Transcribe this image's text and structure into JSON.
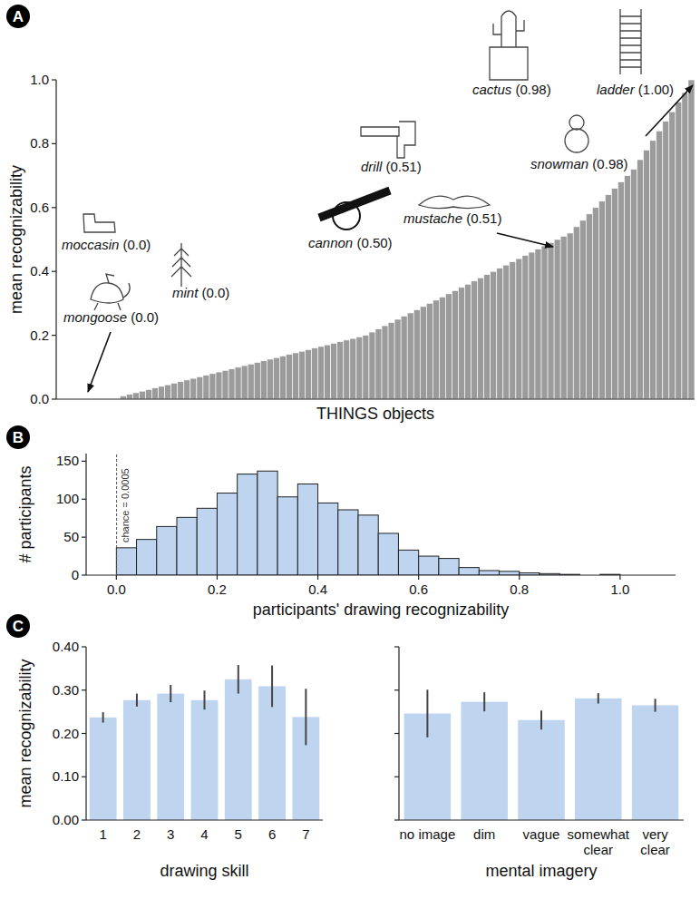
{
  "chart_data": [
    {
      "panel": "A",
      "type": "bar",
      "categories": [
        null,
        null,
        null,
        null,
        null,
        null,
        null,
        null,
        null,
        null,
        null,
        null,
        null,
        null,
        null,
        null,
        null,
        null,
        null,
        null,
        null,
        null,
        null,
        null,
        null,
        null,
        null,
        null,
        null,
        null,
        null,
        null,
        null,
        null,
        null,
        null,
        null,
        null,
        null,
        null,
        null,
        null,
        null,
        null,
        null,
        null,
        null,
        null,
        null,
        null,
        null,
        null,
        null,
        null,
        null,
        null,
        null,
        null,
        null,
        null,
        null,
        null,
        null,
        null,
        null,
        null,
        null,
        null,
        null,
        null,
        null,
        null,
        null,
        null,
        null,
        null,
        null,
        null,
        null,
        null,
        null,
        null,
        null,
        null,
        null,
        null,
        null,
        null,
        null,
        null,
        null,
        null,
        null,
        null,
        null,
        null,
        null,
        null,
        null,
        null
      ],
      "values": [
        0,
        0,
        0,
        0,
        0,
        0,
        0,
        0,
        0,
        0,
        0.01,
        0.015,
        0.02,
        0.025,
        0.03,
        0.035,
        0.04,
        0.045,
        0.05,
        0.055,
        0.06,
        0.065,
        0.07,
        0.075,
        0.08,
        0.085,
        0.09,
        0.095,
        0.1,
        0.105,
        0.11,
        0.115,
        0.12,
        0.125,
        0.13,
        0.135,
        0.14,
        0.145,
        0.15,
        0.155,
        0.16,
        0.165,
        0.17,
        0.175,
        0.18,
        0.185,
        0.19,
        0.195,
        0.2,
        0.21,
        0.22,
        0.23,
        0.24,
        0.25,
        0.26,
        0.27,
        0.28,
        0.29,
        0.3,
        0.31,
        0.32,
        0.33,
        0.34,
        0.35,
        0.36,
        0.37,
        0.38,
        0.39,
        0.4,
        0.41,
        0.42,
        0.43,
        0.44,
        0.45,
        0.46,
        0.47,
        0.48,
        0.49,
        0.5,
        0.51,
        0.52,
        0.54,
        0.56,
        0.58,
        0.6,
        0.62,
        0.64,
        0.66,
        0.68,
        0.7,
        0.72,
        0.75,
        0.78,
        0.81,
        0.84,
        0.87,
        0.9,
        0.93,
        0.96,
        1.0
      ],
      "color": "#9b9b9b",
      "ylim": [
        0,
        1
      ],
      "yticks": [
        {
          "value": 0,
          "label": "0.0"
        },
        {
          "value": 0.2,
          "label": "0.2"
        },
        {
          "value": 0.4,
          "label": "0.4"
        },
        {
          "value": 0.6,
          "label": "0.6"
        },
        {
          "value": 0.8,
          "label": "0.8"
        },
        {
          "value": 1,
          "label": "1.0"
        }
      ],
      "y_label": "mean recognizability",
      "x_label": "THINGS objects",
      "tick_labels": "y",
      "grid": false,
      "annotations": [
        {
          "text": "moccasin (0.0)"
        },
        {
          "text": "mint (0.0)"
        },
        {
          "text": "mongoose (0.0)"
        },
        {
          "text": "drill (0.51)"
        },
        {
          "text": "cannon (0.50)"
        },
        {
          "text": "mustache (0.51)"
        },
        {
          "text": "cactus (0.98)"
        },
        {
          "text": "ladder (1.00)"
        },
        {
          "text": "snowman (0.98)"
        }
      ]
    },
    {
      "panel": "B",
      "type": "histogram",
      "bins": [
        0,
        0.04,
        0.08,
        0.12,
        0.16,
        0.2,
        0.24,
        0.28,
        0.32,
        0.36,
        0.4,
        0.44,
        0.48,
        0.52,
        0.56,
        0.6,
        0.64,
        0.68,
        0.72,
        0.76,
        0.8,
        0.84,
        0.88,
        0.92,
        0.96,
        1
      ],
      "values": [
        36,
        47,
        64,
        76,
        88,
        108,
        133,
        137,
        103,
        120,
        95,
        86,
        79,
        55,
        33,
        25,
        22,
        10,
        6,
        5,
        3,
        2,
        1,
        0,
        1
      ],
      "color": "#bfd4ee",
      "xlim": [
        -0.06,
        1.11
      ],
      "xticks": [
        {
          "value": 0,
          "label": "0.0"
        },
        {
          "value": 0.2,
          "label": "0.2"
        },
        {
          "value": 0.4,
          "label": "0.4"
        },
        {
          "value": 0.6,
          "label": "0.6"
        },
        {
          "value": 0.8,
          "label": "0.8"
        },
        {
          "value": 1,
          "label": "1.0"
        }
      ],
      "ylim": [
        0,
        160
      ],
      "yticks": [
        0,
        50,
        100,
        150
      ],
      "x_label": "participants' drawing recognizability",
      "y_label": "# participants",
      "grid": false,
      "annotations": [
        {
          "x": 0.0005,
          "text": "chance = 0.0005"
        }
      ]
    },
    {
      "panel": "C",
      "type": "bar",
      "categories": [
        "1",
        "2",
        "3",
        "4",
        "5",
        "6",
        "7"
      ],
      "values": [
        0.237,
        0.277,
        0.292,
        0.277,
        0.325,
        0.309,
        0.238
      ],
      "errors": [
        0.012,
        0.015,
        0.02,
        0.022,
        0.033,
        0.048,
        0.065
      ],
      "color": "#bfd4ee",
      "ylim": [
        0,
        0.4
      ],
      "yticks": [
        {
          "value": 0,
          "label": "0.00"
        },
        {
          "value": 0.1,
          "label": "0.10"
        },
        {
          "value": 0.2,
          "label": "0.20"
        },
        {
          "value": 0.3,
          "label": "0.30"
        },
        {
          "value": 0.4,
          "label": "0.40"
        }
      ],
      "x_label": "drawing skill",
      "y_label": "mean recognizability",
      "grid": false
    },
    {
      "type": "bar",
      "categories": [
        "no image",
        "dim",
        "vague",
        "somewhat clear",
        "very clear"
      ],
      "values": [
        0.246,
        0.273,
        0.231,
        0.281,
        0.265
      ],
      "errors": [
        0.055,
        0.022,
        0.022,
        0.012,
        0.015
      ],
      "color": "#bfd4ee",
      "ylim": [
        0,
        0.4
      ],
      "yticks": [
        0,
        0.1,
        0.2,
        0.3,
        0.4
      ],
      "x_label": "mental imagery",
      "tick_labels": "x",
      "grid": false
    }
  ]
}
